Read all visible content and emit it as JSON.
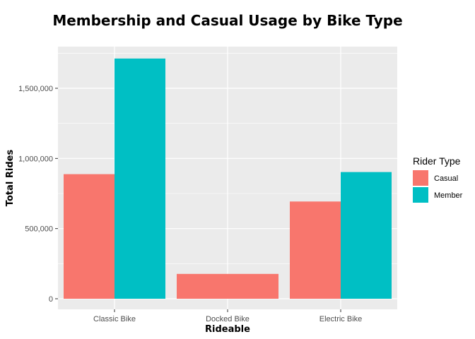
{
  "chart_data": {
    "type": "bar",
    "title": "Membership and Casual Usage by Bike Type",
    "xlabel": "Rideable",
    "ylabel": "Total Rides",
    "categories": [
      "Classic Bike",
      "Docked Bike",
      "Electric Bike"
    ],
    "series": [
      {
        "name": "Casual",
        "color": "#F8766D",
        "values": [
          888000,
          177000,
          693000
        ]
      },
      {
        "name": "Member",
        "color": "#00BFC4",
        "values": [
          1712000,
          null,
          903000
        ]
      }
    ],
    "ylim": [
      0,
      1790000
    ],
    "yticks": [
      0,
      500000,
      1000000,
      1500000
    ],
    "ytick_labels": [
      "0",
      "500,000",
      "1,000,000",
      "1,500,000"
    ],
    "legend": {
      "title": "Rider Type",
      "position": "right"
    },
    "grid": true,
    "panel_background": "#EBEBEB"
  }
}
